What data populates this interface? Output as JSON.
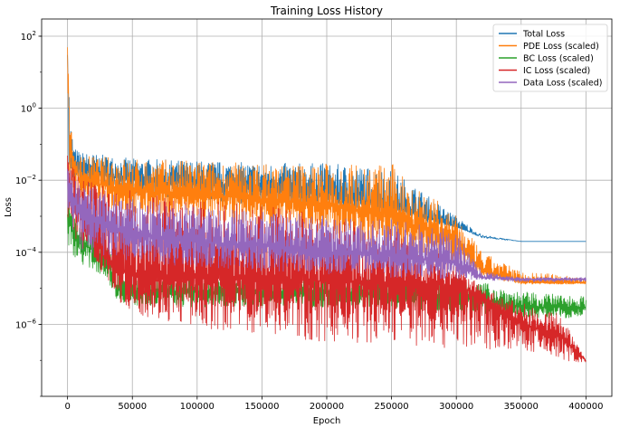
{
  "chart_data": {
    "type": "line",
    "title": "Training Loss History",
    "xlabel": "Epoch",
    "ylabel": "Loss",
    "xlim": [
      -20000,
      420000
    ],
    "ylim": [
      1e-08,
      300
    ],
    "yscale": "log",
    "grid": true,
    "legend_position": "top-right",
    "x_ticks": [
      0,
      50000,
      100000,
      150000,
      200000,
      250000,
      300000,
      350000,
      400000
    ],
    "x_tick_labels": [
      "0",
      "50000",
      "100000",
      "150000",
      "200000",
      "250000",
      "300000",
      "350000",
      "400000"
    ],
    "y_ticks": [
      1e-06,
      0.0001,
      0.01,
      1,
      100
    ],
    "y_tick_labels": [
      {
        "base": "10",
        "exp": "−6"
      },
      {
        "base": "10",
        "exp": "−4"
      },
      {
        "base": "10",
        "exp": "−2"
      },
      {
        "base": "10",
        "exp": "0"
      },
      {
        "base": "10",
        "exp": "2"
      }
    ],
    "series": [
      {
        "name": "Total Loss",
        "color": "#1f77b4",
        "band_lower": [
          [
            0,
            0.01
          ],
          [
            5000,
            0.008
          ],
          [
            10000,
            0.006
          ],
          [
            50000,
            0.004
          ],
          [
            100000,
            0.003
          ],
          [
            150000,
            0.002
          ],
          [
            200000,
            0.0015
          ],
          [
            250000,
            0.001
          ],
          [
            300000,
            0.0005
          ],
          [
            320000,
            0.0003
          ],
          [
            350000,
            0.0002
          ],
          [
            400000,
            0.0002
          ]
        ],
        "band_upper": [
          [
            0,
            60
          ],
          [
            2000,
            0.5
          ],
          [
            5000,
            0.08
          ],
          [
            10000,
            0.06
          ],
          [
            50000,
            0.04
          ],
          [
            100000,
            0.035
          ],
          [
            150000,
            0.03
          ],
          [
            200000,
            0.03
          ],
          [
            250000,
            0.02
          ],
          [
            300000,
            0.001
          ],
          [
            320000,
            0.0003
          ],
          [
            350000,
            0.0002
          ],
          [
            400000,
            0.0002
          ]
        ],
        "center": [
          [
            0,
            30
          ],
          [
            2000,
            0.05
          ],
          [
            10000,
            0.02
          ],
          [
            50000,
            0.01
          ],
          [
            100000,
            0.008
          ],
          [
            150000,
            0.006
          ],
          [
            200000,
            0.004
          ],
          [
            250000,
            0.002
          ],
          [
            300000,
            0.0005
          ],
          [
            320000,
            0.00025
          ],
          [
            350000,
            0.0002
          ],
          [
            400000,
            0.0002
          ]
        ]
      },
      {
        "name": "PDE Loss (scaled)",
        "color": "#ff7f0e",
        "band_lower": [
          [
            0,
            0.01
          ],
          [
            5000,
            0.004
          ],
          [
            10000,
            0.003
          ],
          [
            50000,
            0.001
          ],
          [
            100000,
            0.0008
          ],
          [
            150000,
            0.0005
          ],
          [
            200000,
            0.0003
          ],
          [
            250000,
            0.0001
          ],
          [
            300000,
            5e-05
          ],
          [
            320000,
            2e-05
          ],
          [
            350000,
            1.3e-05
          ],
          [
            400000,
            1.3e-05
          ]
        ],
        "band_upper": [
          [
            0,
            50
          ],
          [
            2000,
            0.5
          ],
          [
            5000,
            0.05
          ],
          [
            10000,
            0.05
          ],
          [
            50000,
            0.04
          ],
          [
            100000,
            0.035
          ],
          [
            150000,
            0.03
          ],
          [
            200000,
            0.03
          ],
          [
            250000,
            0.03
          ],
          [
            300000,
            0.001
          ],
          [
            320000,
            0.0001
          ],
          [
            350000,
            3e-05
          ],
          [
            400000,
            2e-05
          ]
        ],
        "center": [
          [
            0,
            30
          ],
          [
            2000,
            0.05
          ],
          [
            10000,
            0.01
          ],
          [
            50000,
            0.005
          ],
          [
            100000,
            0.004
          ],
          [
            150000,
            0.003
          ],
          [
            200000,
            0.002
          ],
          [
            250000,
            0.001
          ],
          [
            300000,
            0.0002
          ],
          [
            320000,
            3e-05
          ],
          [
            350000,
            1.5e-05
          ],
          [
            400000,
            1.4e-05
          ]
        ]
      },
      {
        "name": "BC Loss (scaled)",
        "color": "#2ca02c",
        "band_lower": [
          [
            0,
            0.0001
          ],
          [
            5000,
            8e-05
          ],
          [
            10000,
            5e-05
          ],
          [
            30000,
            2e-05
          ],
          [
            38000,
            5e-06
          ],
          [
            50000,
            3e-06
          ],
          [
            100000,
            3e-06
          ],
          [
            150000,
            3e-06
          ],
          [
            200000,
            3e-06
          ],
          [
            250000,
            3e-06
          ],
          [
            300000,
            2e-06
          ],
          [
            320000,
            2e-06
          ],
          [
            350000,
            1.5e-06
          ],
          [
            400000,
            1.5e-06
          ]
        ],
        "band_upper": [
          [
            0,
            0.01
          ],
          [
            5000,
            0.001
          ],
          [
            10000,
            0.0005
          ],
          [
            30000,
            0.0002
          ],
          [
            38000,
            3e-05
          ],
          [
            50000,
            2e-05
          ],
          [
            100000,
            2e-05
          ],
          [
            150000,
            2e-05
          ],
          [
            200000,
            2e-05
          ],
          [
            250000,
            2e-05
          ],
          [
            300000,
            2e-05
          ],
          [
            320000,
            1.5e-05
          ],
          [
            350000,
            8e-06
          ],
          [
            400000,
            6e-06
          ]
        ],
        "center": [
          [
            0,
            0.001
          ],
          [
            5000,
            0.0003
          ],
          [
            10000,
            0.0002
          ],
          [
            30000,
            6e-05
          ],
          [
            38000,
            1e-05
          ],
          [
            50000,
            8e-06
          ],
          [
            100000,
            8e-06
          ],
          [
            200000,
            8e-06
          ],
          [
            300000,
            6e-06
          ],
          [
            320000,
            5e-06
          ],
          [
            350000,
            3e-06
          ],
          [
            400000,
            3e-06
          ]
        ]
      },
      {
        "name": "IC Loss (scaled)",
        "color": "#d62728",
        "band_lower": [
          [
            0,
            0.001
          ],
          [
            10000,
            0.0001
          ],
          [
            30000,
            2e-05
          ],
          [
            38000,
            5e-06
          ],
          [
            50000,
            2e-06
          ],
          [
            100000,
            8e-07
          ],
          [
            150000,
            5e-07
          ],
          [
            200000,
            3e-07
          ],
          [
            250000,
            3e-07
          ],
          [
            300000,
            2e-07
          ],
          [
            350000,
            2e-07
          ],
          [
            380000,
            1e-07
          ],
          [
            400000,
            8e-08
          ]
        ],
        "band_upper": [
          [
            0,
            0.05
          ],
          [
            5000,
            0.02
          ],
          [
            10000,
            0.01
          ],
          [
            50000,
            0.005
          ],
          [
            100000,
            0.003
          ],
          [
            150000,
            0.002
          ],
          [
            200000,
            0.001
          ],
          [
            250000,
            0.0005
          ],
          [
            300000,
            5e-05
          ],
          [
            320000,
            1e-05
          ],
          [
            350000,
            4e-06
          ],
          [
            380000,
            2e-06
          ],
          [
            400000,
            1e-07
          ]
        ],
        "center": [
          [
            0,
            0.01
          ],
          [
            10000,
            0.001
          ],
          [
            30000,
            0.0001
          ],
          [
            38000,
            3e-05
          ],
          [
            50000,
            2.5e-05
          ],
          [
            100000,
            2e-05
          ],
          [
            150000,
            1.8e-05
          ],
          [
            200000,
            1.6e-05
          ],
          [
            250000,
            1.5e-05
          ],
          [
            300000,
            1.2e-05
          ],
          [
            320000,
            6e-06
          ],
          [
            350000,
            1e-06
          ],
          [
            380000,
            5e-07
          ],
          [
            400000,
            1e-07
          ]
        ]
      },
      {
        "name": "Data Loss (scaled)",
        "color": "#9467bd",
        "band_lower": [
          [
            0,
            0.001
          ],
          [
            10000,
            0.0001
          ],
          [
            30000,
            7e-05
          ],
          [
            50000,
            5e-05
          ],
          [
            100000,
            4e-05
          ],
          [
            150000,
            3e-05
          ],
          [
            200000,
            2.5e-05
          ],
          [
            250000,
            2e-05
          ],
          [
            300000,
            1.8e-05
          ],
          [
            320000,
            1.7e-05
          ],
          [
            350000,
            1.5e-05
          ],
          [
            400000,
            1.5e-05
          ]
        ],
        "band_upper": [
          [
            0,
            0.03
          ],
          [
            5000,
            0.01
          ],
          [
            10000,
            0.008
          ],
          [
            50000,
            0.003
          ],
          [
            100000,
            0.002
          ],
          [
            150000,
            0.0015
          ],
          [
            200000,
            0.001
          ],
          [
            250000,
            0.0008
          ],
          [
            300000,
            0.0004
          ],
          [
            320000,
            3e-05
          ],
          [
            350000,
            2e-05
          ],
          [
            400000,
            2e-05
          ]
        ],
        "center": [
          [
            0,
            0.01
          ],
          [
            10000,
            0.001
          ],
          [
            50000,
            0.0003
          ],
          [
            100000,
            0.0002
          ],
          [
            150000,
            0.00015
          ],
          [
            200000,
            0.0001
          ],
          [
            250000,
            8e-05
          ],
          [
            300000,
            5e-05
          ],
          [
            320000,
            2e-05
          ],
          [
            350000,
            1.8e-05
          ],
          [
            400000,
            1.8e-05
          ]
        ]
      }
    ]
  }
}
